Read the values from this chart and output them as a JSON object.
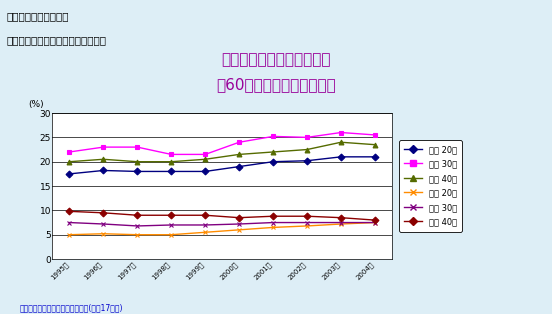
{
  "title_line1": "フルタイム労働者に占める",
  "title_line2": "週60時間以上働く人の割合",
  "header_line1": "２．現在の日本の状況",
  "header_line2": "（２）働いている現場の状況と課題",
  "footer": "資料：　内閣府「国民生活白書」(平成17年版)",
  "x_labels": [
    "1995年",
    "1996年",
    "1997年",
    "1998年",
    "1999年",
    "2000年",
    "2001年",
    "2002年",
    "2003年",
    "2004年"
  ],
  "ylabel": "(%)",
  "ylim": [
    0,
    30
  ],
  "yticks": [
    0,
    5,
    10,
    15,
    20,
    25,
    30
  ],
  "series": [
    {
      "label": "男性 20代",
      "color": "#000080",
      "marker": "D",
      "values": [
        17.5,
        18.2,
        18.0,
        18.0,
        18.0,
        19.0,
        20.0,
        20.2,
        21.0,
        21.0
      ]
    },
    {
      "label": "男性 30代",
      "color": "#ff00ff",
      "marker": "s",
      "values": [
        22.0,
        23.0,
        23.0,
        21.5,
        21.5,
        24.0,
        25.2,
        25.0,
        26.0,
        25.5
      ]
    },
    {
      "label": "男性 40代",
      "color": "#556b00",
      "marker": "^",
      "values": [
        20.0,
        20.5,
        20.0,
        20.0,
        20.5,
        21.5,
        22.0,
        22.5,
        24.0,
        23.5
      ]
    },
    {
      "label": "女性 20代",
      "color": "#ff8c00",
      "marker": "x",
      "values": [
        5.0,
        5.2,
        5.0,
        5.0,
        5.5,
        6.0,
        6.5,
        6.8,
        7.2,
        7.5
      ]
    },
    {
      "label": "女性 30代",
      "color": "#800080",
      "marker": "x",
      "values": [
        7.5,
        7.2,
        6.8,
        7.0,
        7.0,
        7.2,
        7.5,
        7.5,
        7.5,
        7.5
      ]
    },
    {
      "label": "女性 40代",
      "color": "#8b0000",
      "marker": "D",
      "values": [
        9.8,
        9.5,
        9.0,
        9.0,
        9.0,
        8.5,
        8.8,
        8.8,
        8.5,
        8.0
      ]
    }
  ],
  "bg_color": "#ddeef6",
  "header_bg": "#b0d4e8",
  "plot_bg": "#ffffff",
  "title_color": "#990099",
  "header_color": "#000000",
  "footer_color": "#0000cc"
}
